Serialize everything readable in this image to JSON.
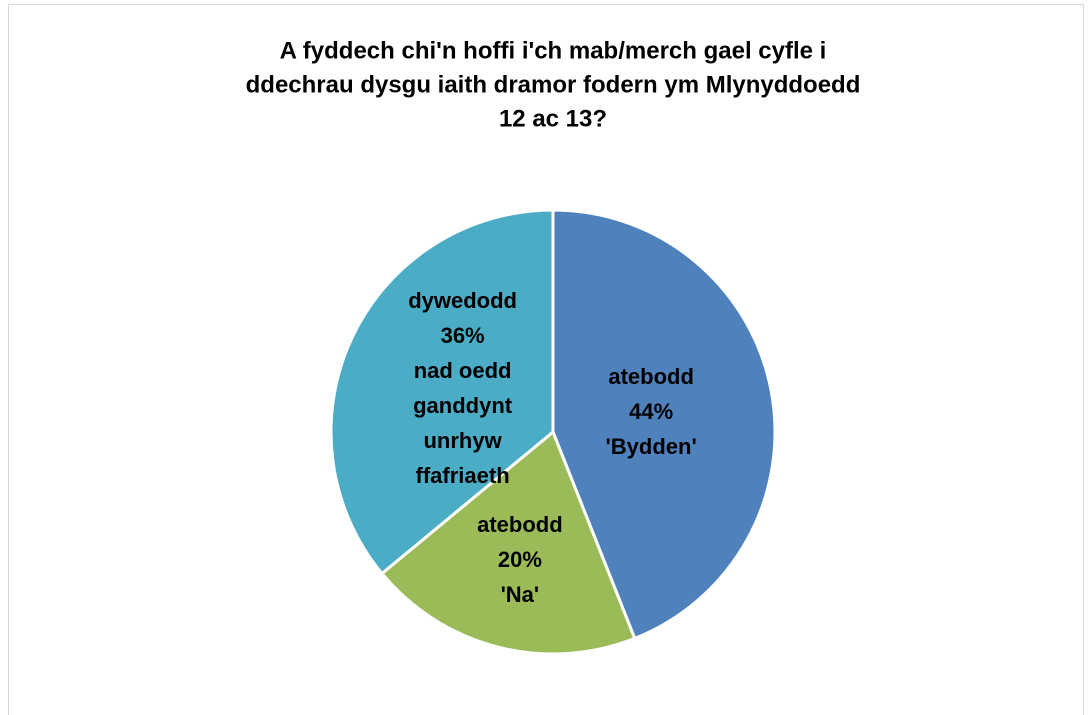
{
  "chart_data": {
    "type": "pie",
    "title": [
      "A fyddech chi'n hoffi i'ch mab/merch gael cyfle i",
      "ddechrau dysgu iaith dramor fodern ym Mlynyddoedd",
      "12 ac 13?"
    ],
    "values": [
      44,
      20,
      36
    ],
    "value_labels": [
      [
        "atebodd",
        "44%",
        "'Bydden'"
      ],
      [
        "atebodd",
        "20%",
        "'Na'"
      ],
      [
        "dywedodd",
        "36%",
        "nad oedd",
        "ganddynt",
        "unrhyw",
        "ffafriaeth"
      ]
    ],
    "colors": [
      "#4f81bd",
      "#9bbb59",
      "#4bacc6"
    ]
  }
}
